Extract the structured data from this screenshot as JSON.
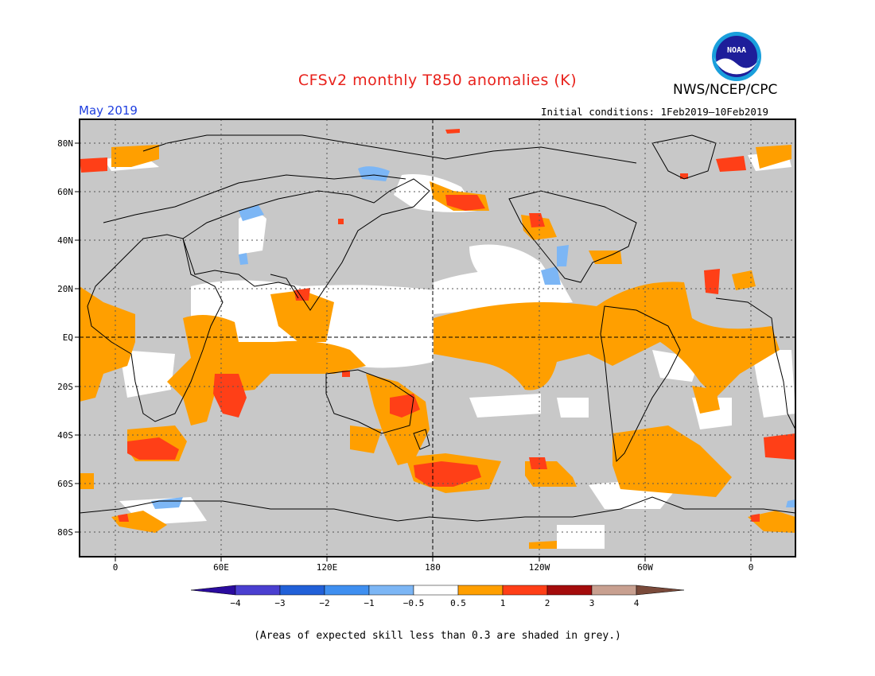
{
  "header": {
    "title": "CFSv2 monthly T850 anomalies (K)",
    "org": "NWS/NCEP/CPC",
    "month": "May 2019",
    "initial_conditions": "Initial conditions: 1Feb2019–10Feb2019"
  },
  "logo": {
    "text": "NOAA"
  },
  "map": {
    "lat_labels": [
      "80N",
      "60N",
      "40N",
      "20N",
      "EQ",
      "20S",
      "40S",
      "60S",
      "80S"
    ],
    "lon_labels": [
      "0",
      "60E",
      "120E",
      "180",
      "120W",
      "60W",
      "0"
    ],
    "land_color": "#c8c8c8"
  },
  "colorbar": {
    "tick_labels": [
      "−4",
      "−3",
      "−2",
      "−1",
      "−0.5",
      "0.5",
      "1",
      "2",
      "3",
      "4"
    ],
    "colors": [
      "#2a0b9e",
      "#4a3fd0",
      "#2160d8",
      "#3f8ff0",
      "#7cb6f5",
      "#ffffff",
      "#ff9f00",
      "#ff3f17",
      "#a40c0c",
      "#c8a090",
      "#7a4a3a"
    ]
  },
  "footnote": "(Areas of expected skill less than 0.3 are shaded in grey.)"
}
